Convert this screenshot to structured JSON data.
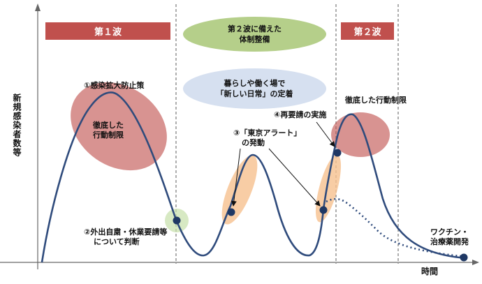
{
  "y_axis_label": "新規感染者数等",
  "x_axis_label": "時間",
  "banners": {
    "wave1": "第１波",
    "wave2": "第２波"
  },
  "bubbles": {
    "prepare_line1": "第２波に備えた",
    "prepare_line2": "体制整備",
    "new_normal_line1": "暮らしや働く場で",
    "new_normal_line2": "「新しい日常」の定着"
  },
  "annotations": {
    "measures": "①感染拡大防止策",
    "restriction_left_line1": "徹底した",
    "restriction_left_line2": "行動制限",
    "self_restraint_line1": "②外出自粛・休業要請等",
    "self_restraint_line2": "について判断",
    "alert_line1": "③「東京アラート」",
    "alert_line2": "の発動",
    "re_request": "④再要請の実施",
    "restriction_right": "徹底した行動制限",
    "vaccine_line1": "ワクチン・",
    "vaccine_line2": "治療薬開発"
  },
  "colors": {
    "curve": "#2f4b7c",
    "banner": "#c0504d",
    "restriction_ellipse": "#c0504d",
    "prepare_bubble": "#b5cf8a",
    "new_normal_bubble": "#d6e0f0",
    "alert_ellipse": "#f6c08f",
    "marker": "#1f3864"
  }
}
